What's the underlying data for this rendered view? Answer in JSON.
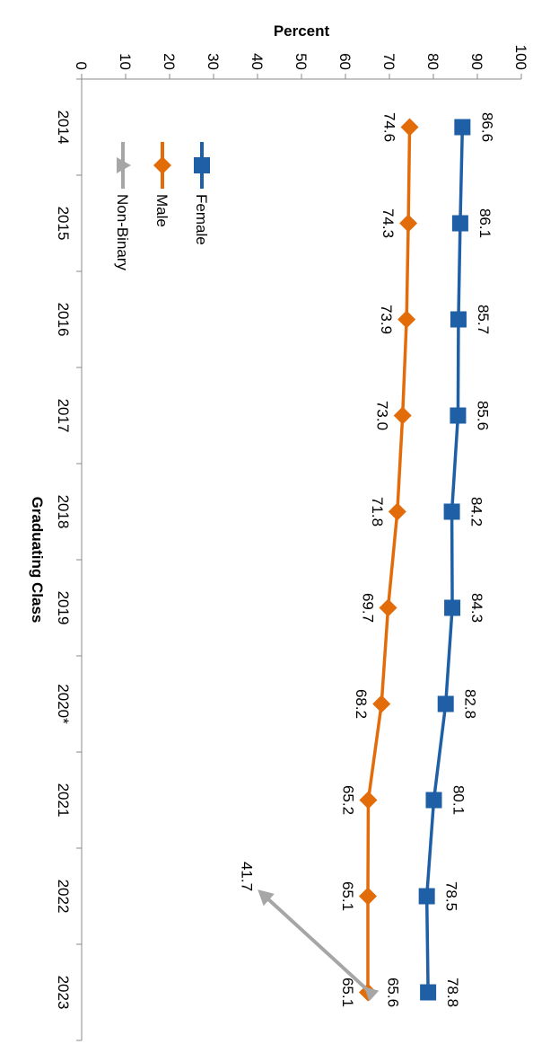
{
  "chart_data": {
    "type": "line",
    "orientation": "rotated-90-clockwise",
    "xlabel": "Graduating Class",
    "ylabel": "Percent",
    "categories": [
      "2014",
      "2015",
      "2016",
      "2017",
      "2018",
      "2019",
      "2020*",
      "2021",
      "2022",
      "2023"
    ],
    "ylim": [
      0,
      100
    ],
    "yticks": [
      "0",
      "10",
      "20",
      "30",
      "40",
      "50",
      "60",
      "70",
      "80",
      "90",
      "100"
    ],
    "grid": false,
    "legend_position": "top-left",
    "series": [
      {
        "name": "Female",
        "color": "#1f5fa6",
        "marker": "square",
        "values": [
          86.6,
          86.1,
          85.7,
          85.6,
          84.2,
          84.3,
          82.8,
          80.1,
          78.5,
          78.8
        ],
        "labels": [
          "86.6",
          "86.1",
          "85.7",
          "85.6",
          "84.2",
          "84.3",
          "82.8",
          "80.1",
          "78.5",
          "78.8"
        ]
      },
      {
        "name": "Male",
        "color": "#e36c0a",
        "marker": "diamond",
        "values": [
          74.6,
          74.3,
          73.9,
          73.0,
          71.8,
          69.7,
          68.2,
          65.2,
          65.1,
          65.1
        ],
        "labels": [
          "74.6",
          "74.3",
          "73.9",
          "73.0",
          "71.8",
          "69.7",
          "68.2",
          "65.2",
          "65.1",
          "65.1"
        ]
      },
      {
        "name": "Non-Binary",
        "color": "#a6a6a6",
        "marker": "triangle",
        "values": [
          null,
          null,
          null,
          null,
          null,
          null,
          null,
          null,
          41.7,
          65.6
        ],
        "labels": [
          null,
          null,
          null,
          null,
          null,
          null,
          null,
          null,
          "41.7",
          "65.6"
        ]
      }
    ]
  }
}
